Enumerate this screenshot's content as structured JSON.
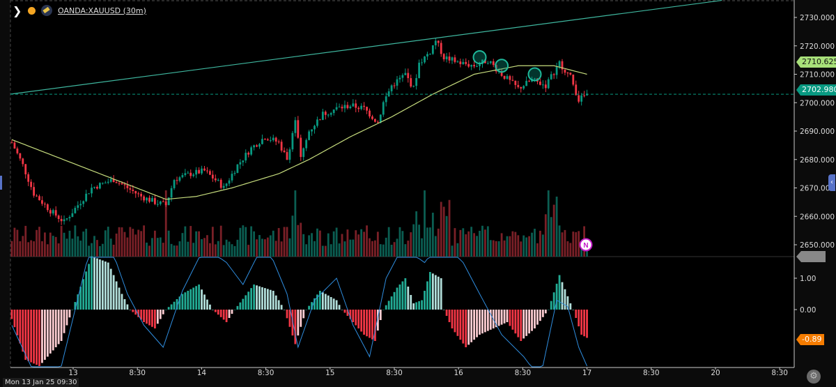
{
  "header": {
    "symbol": "OANDA:XAUUSD (30m)",
    "icons": [
      "chevron-right-icon",
      "market-status-dot-icon",
      "gold-flag-icon"
    ]
  },
  "colors": {
    "up": "#089981",
    "down": "#f23645",
    "ma": "#c7dd7e",
    "trendline": "#3fb8a0",
    "macd_line": "#2f8ee0",
    "last_price": "#089981",
    "ma_label": "#a8e07a",
    "osc_label": "#f57c00"
  },
  "chart_data": {
    "type": "candlestick",
    "interval": "30m",
    "price_ticks": [
      "2730.000",
      "2720.000",
      "2710.000",
      "2700.000",
      "2690.000",
      "2680.000",
      "2670.000",
      "2660.000",
      "2650.000"
    ],
    "price_range": [
      2647,
      2735
    ],
    "time_ticks": [
      "13",
      "8:30",
      "14",
      "8:30",
      "15",
      "8:30",
      "16",
      "8:30",
      "17",
      "8:30",
      "20",
      "8:30"
    ],
    "crosshair_time": "Mon 13 Jan 25 09:30",
    "last_price": "2702.980",
    "ma_value": "2710.625",
    "close_path": [
      [
        0,
        2686
      ],
      [
        4,
        2678
      ],
      [
        8,
        2668
      ],
      [
        14,
        2662
      ],
      [
        19,
        2658
      ],
      [
        24,
        2664
      ],
      [
        29,
        2670
      ],
      [
        37,
        2673
      ],
      [
        42,
        2670
      ],
      [
        47,
        2667
      ],
      [
        52,
        2665
      ],
      [
        56,
        2664
      ],
      [
        59,
        2673
      ],
      [
        65,
        2675
      ],
      [
        70,
        2676
      ],
      [
        75,
        2672
      ],
      [
        77,
        2670
      ],
      [
        82,
        2678
      ],
      [
        87,
        2684
      ],
      [
        92,
        2688
      ],
      [
        97,
        2686
      ],
      [
        100,
        2680
      ],
      [
        103,
        2694
      ],
      [
        105,
        2680
      ],
      [
        108,
        2690
      ],
      [
        113,
        2696
      ],
      [
        118,
        2698
      ],
      [
        123,
        2699
      ],
      [
        128,
        2698
      ],
      [
        133,
        2693
      ],
      [
        135,
        2700
      ],
      [
        138,
        2706
      ],
      [
        143,
        2710
      ],
      [
        146,
        2705
      ],
      [
        148,
        2714
      ],
      [
        152,
        2718
      ],
      [
        154,
        2722
      ],
      [
        157,
        2716
      ],
      [
        163,
        2714
      ],
      [
        168,
        2713
      ],
      [
        173,
        2715
      ],
      [
        178,
        2710
      ],
      [
        184,
        2705
      ],
      [
        189,
        2708
      ],
      [
        194,
        2706
      ],
      [
        199,
        2714
      ],
      [
        203,
        2709
      ],
      [
        206,
        2701
      ],
      [
        209,
        2703
      ]
    ],
    "moving_average": [
      [
        0,
        2687
      ],
      [
        56,
        2666
      ],
      [
        67,
        2667
      ],
      [
        80,
        2670
      ],
      [
        97,
        2675
      ],
      [
        108,
        2680
      ],
      [
        123,
        2688
      ],
      [
        138,
        2695
      ],
      [
        153,
        2703
      ],
      [
        168,
        2710
      ],
      [
        184,
        2713
      ],
      [
        197,
        2713
      ],
      [
        209,
        2710
      ]
    ],
    "trendline": [
      [
        0,
        2703
      ],
      [
        258,
        2736
      ]
    ],
    "signal_markers": [
      [
        170,
        2716
      ],
      [
        178,
        2713
      ],
      [
        190,
        2710
      ]
    ],
    "news_marker": {
      "label": "N"
    },
    "oscillator": {
      "ticks": [
        "1.00",
        "0.00"
      ],
      "last_value": "-0.89",
      "histogram": [
        [
          0,
          -0.3
        ],
        [
          5,
          -1.6
        ],
        [
          10,
          -1.8
        ],
        [
          18,
          -1.0
        ],
        [
          22,
          0
        ],
        [
          29,
          1.7
        ],
        [
          35,
          1.5
        ],
        [
          40,
          0.5
        ],
        [
          43,
          0
        ],
        [
          48,
          -0.4
        ],
        [
          52,
          -0.6
        ],
        [
          56,
          0
        ],
        [
          62,
          0.5
        ],
        [
          68,
          0.8
        ],
        [
          73,
          0
        ],
        [
          78,
          -0.4
        ],
        [
          81,
          0
        ],
        [
          88,
          0.8
        ],
        [
          95,
          0.6
        ],
        [
          99,
          0
        ],
        [
          103,
          -1.1
        ],
        [
          107,
          0
        ],
        [
          112,
          0.6
        ],
        [
          118,
          0.3
        ],
        [
          120,
          0
        ],
        [
          128,
          -0.8
        ],
        [
          132,
          -1.0
        ],
        [
          135,
          0
        ],
        [
          140,
          0.7
        ],
        [
          143,
          1.0
        ],
        [
          146,
          0.2
        ],
        [
          149,
          0.3
        ],
        [
          152,
          1.2
        ],
        [
          156,
          1.0
        ],
        [
          157,
          0
        ],
        [
          160,
          -0.6
        ],
        [
          165,
          -1.2
        ],
        [
          170,
          -0.8
        ],
        [
          175,
          -0.6
        ],
        [
          180,
          -0.4
        ],
        [
          185,
          -1.0
        ],
        [
          190,
          -0.6
        ],
        [
          195,
          0
        ],
        [
          199,
          1.1
        ],
        [
          203,
          0.2
        ],
        [
          204,
          0
        ],
        [
          207,
          -0.8
        ],
        [
          209,
          -0.9
        ]
      ],
      "line": [
        [
          0,
          -0.5
        ],
        [
          8,
          -2.0
        ],
        [
          18,
          -1.8
        ],
        [
          28,
          1.8
        ],
        [
          36,
          2.0
        ],
        [
          42,
          0.5
        ],
        [
          48,
          -0.5
        ],
        [
          55,
          -1.2
        ],
        [
          62,
          0.6
        ],
        [
          70,
          2.0
        ],
        [
          78,
          1.5
        ],
        [
          84,
          0.8
        ],
        [
          92,
          2.2
        ],
        [
          100,
          0.5
        ],
        [
          104,
          -1.2
        ],
        [
          110,
          0.3
        ],
        [
          118,
          1.0
        ],
        [
          124,
          -0.5
        ],
        [
          130,
          -1.5
        ],
        [
          136,
          1.0
        ],
        [
          142,
          2.0
        ],
        [
          150,
          1.5
        ],
        [
          156,
          2.2
        ],
        [
          164,
          1.5
        ],
        [
          170,
          0.5
        ],
        [
          178,
          -0.8
        ],
        [
          186,
          -1.5
        ],
        [
          192,
          -2.2
        ],
        [
          198,
          0.3
        ],
        [
          202,
          0.1
        ],
        [
          206,
          -1.2
        ],
        [
          209,
          -1.8
        ]
      ]
    }
  }
}
